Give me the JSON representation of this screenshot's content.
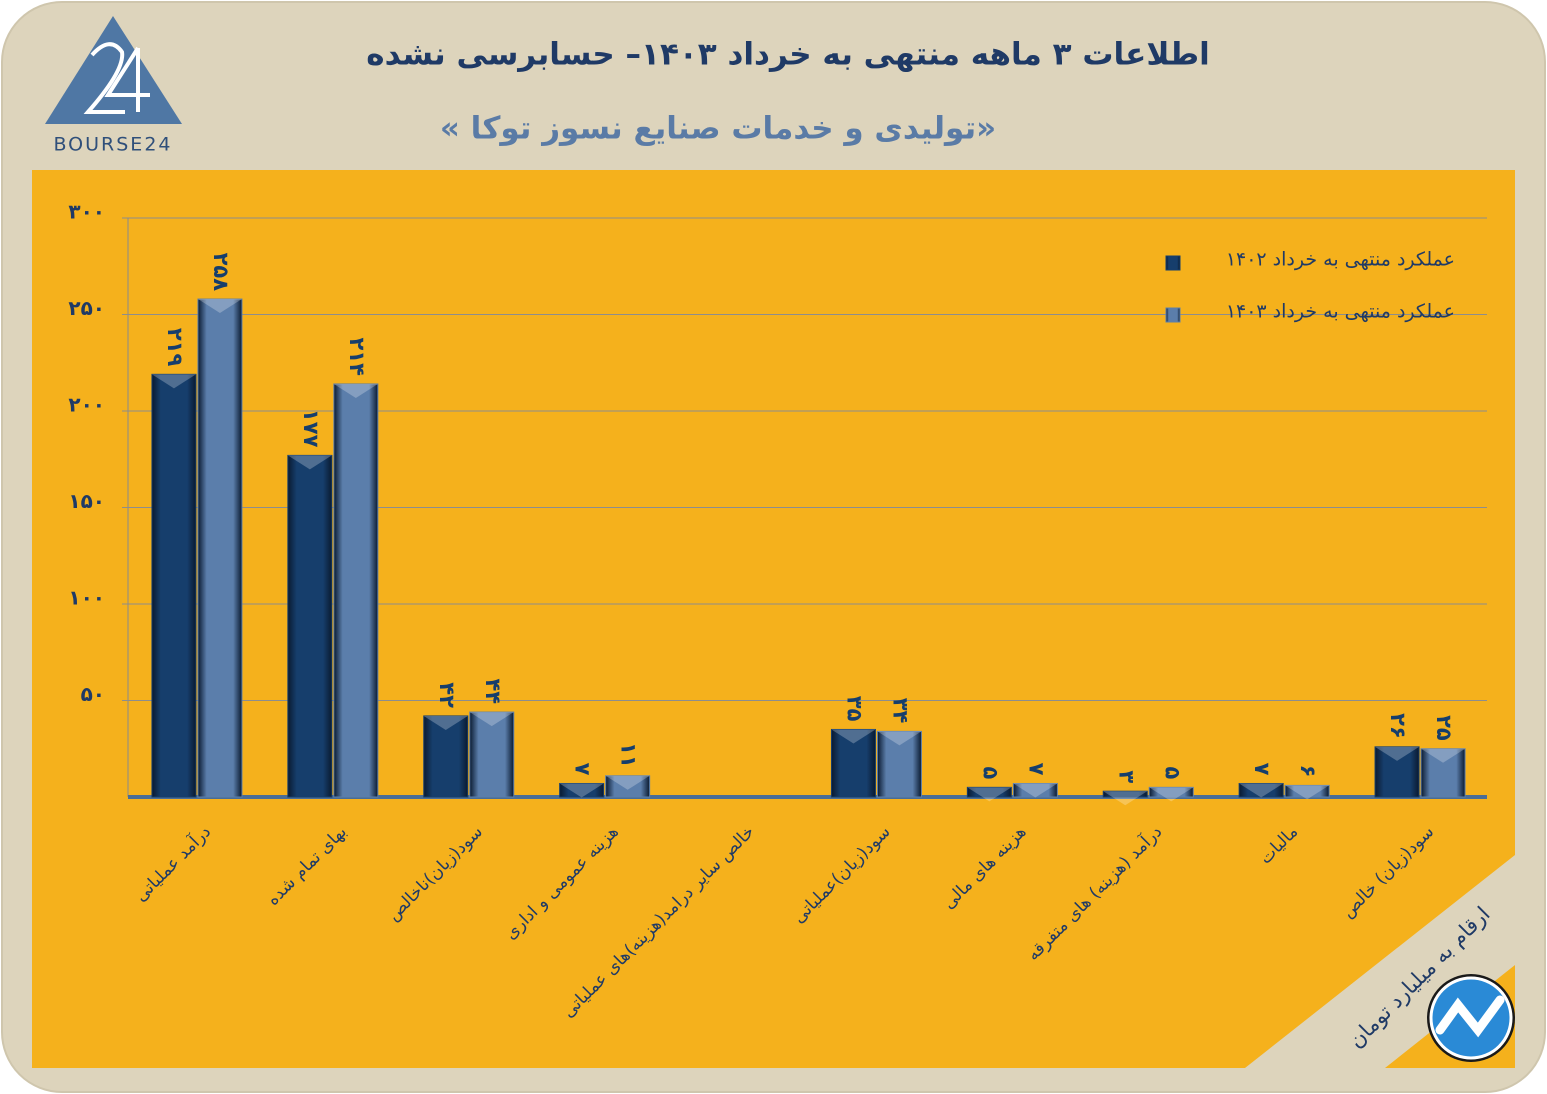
{
  "logo": {
    "text": "BOURSE24"
  },
  "chart_data": {
    "type": "bar",
    "title": "اطلاعات ۳ ماهه منتهی به خرداد ۱۴۰۳– حسابرسی نشده",
    "subtitle": "«تولیدی و خدمات صنایع نسوز توکا »",
    "note": "ارقام به میلیارد تومان",
    "categories": [
      "درآمد عملیاتی",
      "بهای تمام شده",
      "سود(زیان)ناخالص",
      "هزینه عمومی و اداری",
      "خالص سایر درامد(هزینه)های عملیاتی",
      "سود(زیان)عملیاتی",
      "هزینه های مالی",
      "درآمد (هزینه) های متفرقه",
      "مالیات",
      "سود(زیان) خالص"
    ],
    "series": [
      {
        "name": "عملکرد منتهی به خرداد ۱۴۰۲",
        "color": "#163e6c",
        "values": [
          219,
          177,
          42,
          7,
          null,
          35,
          5,
          3,
          7,
          26
        ],
        "value_labels": [
          "۲۱۹",
          "۱۷۷",
          "۴۲",
          "۷",
          null,
          "۳۵",
          "۵",
          "۳",
          "۷",
          "۲۶"
        ]
      },
      {
        "name": "عملکرد منتهی به خرداد ۱۴۰۳",
        "color": "#5b7eab",
        "values": [
          258,
          214,
          44,
          11,
          null,
          34,
          7,
          5,
          6,
          25
        ],
        "value_labels": [
          "۲۵۸",
          "۲۱۴",
          "۴۴",
          "۱۱",
          null,
          "۳۴",
          "۷",
          "۵",
          "۶",
          "۲۵"
        ]
      }
    ],
    "ylim": [
      0,
      300
    ],
    "yticks": [
      {
        "value": 50,
        "label": "۵۰"
      },
      {
        "value": 100,
        "label": "۱۰۰"
      },
      {
        "value": 150,
        "label": "۱۵۰"
      },
      {
        "value": 200,
        "label": "۲۰۰"
      },
      {
        "value": 250,
        "label": "۲۵۰"
      },
      {
        "value": 300,
        "label": "۳۰۰"
      }
    ],
    "grid": true
  }
}
